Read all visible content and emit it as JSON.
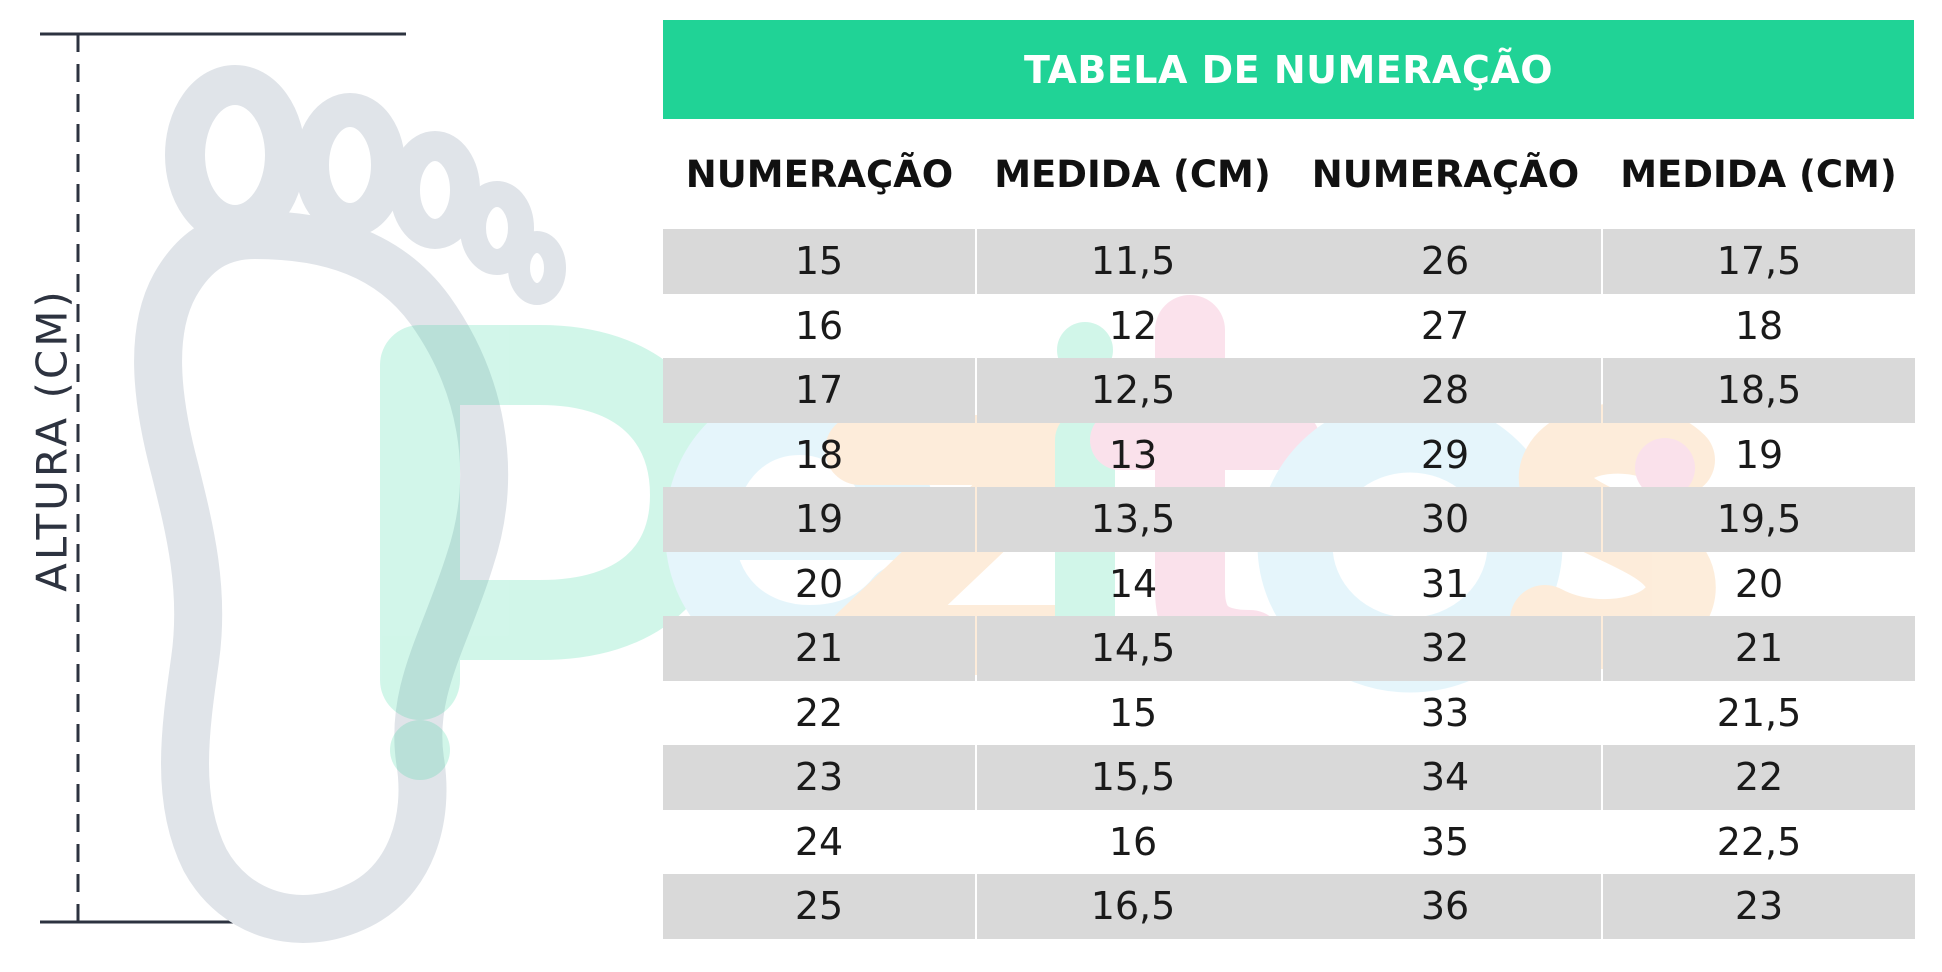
{
  "illustration": {
    "axis_label": "ALTURA (CM)",
    "icon": "foot-icon"
  },
  "watermark": {
    "brand": "Pezitos",
    "colors": [
      "#20d396",
      "#f6a54a",
      "#7fd0f0",
      "#e96fa0"
    ]
  },
  "table": {
    "title": "TABELA DE NUMERAÇÃO",
    "accent_color": "#20d396",
    "stripe_color": "#d9d9d9",
    "headers": [
      "NUMERAÇÃO",
      "MEDIDA (CM)",
      "NUMERAÇÃO",
      "MEDIDA (CM)"
    ],
    "left_rows": [
      [
        "15",
        "11,5"
      ],
      [
        "16",
        "12"
      ],
      [
        "17",
        "12,5"
      ],
      [
        "18",
        "13"
      ],
      [
        "19",
        "13,5"
      ],
      [
        "20",
        "14"
      ],
      [
        "21",
        "14,5"
      ],
      [
        "22",
        "15"
      ],
      [
        "23",
        "15,5"
      ],
      [
        "24",
        "16"
      ],
      [
        "25",
        "16,5"
      ]
    ],
    "right_rows": [
      [
        "26",
        "17,5"
      ],
      [
        "27",
        "18"
      ],
      [
        "28",
        "18,5"
      ],
      [
        "29",
        "19"
      ],
      [
        "30",
        "19,5"
      ],
      [
        "31",
        "20"
      ],
      [
        "32",
        "21"
      ],
      [
        "33",
        "21,5"
      ],
      [
        "34",
        "22"
      ],
      [
        "35",
        "22,5"
      ],
      [
        "36",
        "23"
      ]
    ]
  }
}
